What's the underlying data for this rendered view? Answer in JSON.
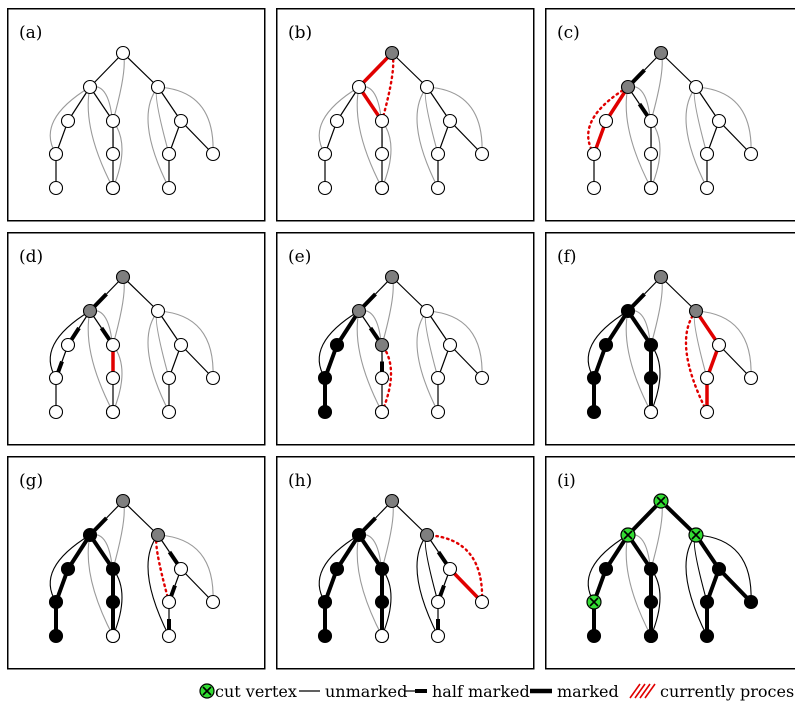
{
  "panels": [
    {
      "label": "(a)",
      "gray": [],
      "black": [],
      "cut": [],
      "marked": [],
      "half": [],
      "proc": [],
      "proc_dotted": [],
      "back_marked": []
    },
    {
      "label": "(b)",
      "gray": [
        0
      ],
      "black": [],
      "cut": [],
      "marked": [],
      "half": [],
      "proc": [
        [
          0,
          1
        ],
        [
          1,
          4
        ]
      ],
      "proc_dotted": [
        [
          0,
          4
        ]
      ],
      "back_marked": []
    },
    {
      "label": "(c)",
      "gray": [
        0,
        1
      ],
      "black": [],
      "cut": [],
      "marked": [],
      "half": [
        [
          0,
          1
        ],
        [
          1,
          4
        ]
      ],
      "proc": [
        [
          1,
          2
        ],
        [
          2,
          3
        ]
      ],
      "proc_dotted": [
        [
          3,
          1
        ]
      ],
      "back_marked": []
    },
    {
      "label": "(d)",
      "gray": [
        0,
        1
      ],
      "black": [],
      "cut": [],
      "marked": [],
      "half": [
        [
          0,
          1
        ],
        [
          1,
          4
        ],
        [
          1,
          2
        ],
        [
          2,
          3
        ]
      ],
      "proc": [
        [
          4,
          5
        ],
        [
          5,
          6
        ]
      ],
      "proc_dotted": [
        [
          6,
          1
        ]
      ],
      "back_marked": [
        [
          3,
          1
        ]
      ]
    },
    {
      "label": "(e)",
      "gray": [
        0,
        1,
        4
      ],
      "black": [
        2,
        3,
        11
      ],
      "cut": [],
      "marked": [
        [
          1,
          2
        ],
        [
          2,
          3
        ],
        [
          3,
          11
        ]
      ],
      "half": [
        [
          0,
          1
        ],
        [
          1,
          4
        ],
        [
          4,
          5
        ],
        [
          5,
          6
        ]
      ],
      "proc": [],
      "proc_dotted": [
        [
          4,
          12
        ]
      ],
      "back_marked": [
        [
          3,
          1
        ],
        [
          6,
          1
        ]
      ]
    },
    {
      "label": "(f)",
      "gray": [
        0,
        7
      ],
      "black": [
        1,
        2,
        3,
        4,
        5,
        11
      ],
      "cut": [],
      "marked": [
        [
          1,
          2
        ],
        [
          2,
          3
        ],
        [
          3,
          11
        ],
        [
          1,
          4
        ],
        [
          4,
          5
        ],
        [
          5,
          12
        ]
      ],
      "half": [
        [
          0,
          1
        ]
      ],
      "proc": [
        [
          7,
          8
        ],
        [
          8,
          9
        ],
        [
          9,
          10
        ]
      ],
      "proc_dotted": [
        [
          10,
          7
        ]
      ],
      "back_marked": [
        [
          3,
          1
        ],
        [
          6,
          1
        ],
        [
          4,
          12
        ]
      ]
    },
    {
      "label": "(g)",
      "gray": [
        0,
        7
      ],
      "black": [
        1,
        2,
        3,
        4,
        5,
        11
      ],
      "cut": [],
      "marked": [
        [
          1,
          2
        ],
        [
          2,
          3
        ],
        [
          3,
          11
        ],
        [
          1,
          4
        ],
        [
          4,
          5
        ],
        [
          5,
          12
        ]
      ],
      "half": [
        [
          0,
          1
        ],
        [
          7,
          8
        ],
        [
          8,
          9
        ],
        [
          9,
          10
        ]
      ],
      "proc": [],
      "proc_dotted": [
        [
          9,
          7
        ]
      ],
      "back_marked": [
        [
          3,
          1
        ],
        [
          6,
          1
        ],
        [
          4,
          12
        ],
        [
          10,
          7
        ]
      ]
    },
    {
      "label": "(h)",
      "gray": [
        0,
        7
      ],
      "black": [
        1,
        2,
        3,
        4,
        5,
        11
      ],
      "cut": [],
      "marked": [
        [
          1,
          2
        ],
        [
          2,
          3
        ],
        [
          3,
          11
        ],
        [
          1,
          4
        ],
        [
          4,
          5
        ],
        [
          5,
          12
        ]
      ],
      "half": [
        [
          0,
          1
        ],
        [
          7,
          8
        ],
        [
          8,
          9
        ],
        [
          9,
          10
        ]
      ],
      "proc": [
        [
          8,
          13
        ]
      ],
      "proc_dotted": [
        [
          13,
          7
        ]
      ],
      "back_marked": [
        [
          3,
          1
        ],
        [
          6,
          1
        ],
        [
          4,
          12
        ],
        [
          10,
          7
        ],
        [
          9,
          7
        ]
      ]
    },
    {
      "label": "(i)",
      "gray": [],
      "black": [
        2,
        4,
        5,
        6,
        8,
        9,
        10,
        11,
        12,
        13
      ],
      "cut": [
        0,
        1,
        3,
        7
      ],
      "marked": [
        [
          0,
          1
        ],
        [
          0,
          7
        ],
        [
          1,
          2
        ],
        [
          2,
          3
        ],
        [
          3,
          11
        ],
        [
          1,
          4
        ],
        [
          4,
          5
        ],
        [
          5,
          12
        ],
        [
          7,
          8
        ],
        [
          8,
          9
        ],
        [
          9,
          10
        ],
        [
          8,
          13
        ]
      ],
      "half": [],
      "proc": [],
      "proc_dotted": [],
      "back_marked": [
        [
          3,
          1
        ],
        [
          6,
          1
        ],
        [
          4,
          12
        ],
        [
          10,
          7
        ],
        [
          9,
          7
        ],
        [
          13,
          7
        ]
      ]
    }
  ],
  "legend": {
    "cut_vertex": "cut vertex",
    "unmarked": "unmarked",
    "half_marked": "half marked",
    "marked": "marked",
    "currently_processed": "currently processed"
  },
  "colors": {
    "gray_fill": "#7f7f7f",
    "processed_red": "#e00000",
    "cut_green": "#33dd33",
    "back_edge_gray": "#9a9a9a",
    "frame": "#000000"
  }
}
